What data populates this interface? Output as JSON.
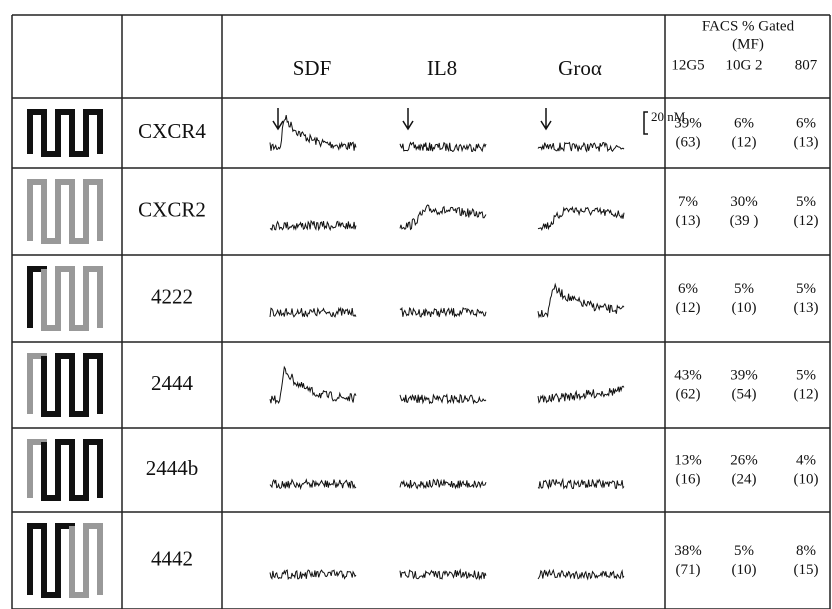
{
  "header": {
    "traces": [
      "SDF",
      "IL8",
      "Groα"
    ],
    "facs_title": "FACS % Gated",
    "facs_sub": "(MF)",
    "antibodies": [
      "12G5",
      "10G 2",
      "807"
    ],
    "scale": "20 nM"
  },
  "rows": [
    {
      "name": "CXCR4",
      "facs": [
        [
          "39%",
          "(63)"
        ],
        [
          "6%",
          "(12)"
        ],
        [
          "6%",
          "(13)"
        ]
      ]
    },
    {
      "name": "CXCR2",
      "facs": [
        [
          "7%",
          "(13)"
        ],
        [
          "30%",
          "(39 )"
        ],
        [
          "5%",
          "(12)"
        ]
      ]
    },
    {
      "name": "4222",
      "facs": [
        [
          "6%",
          "(12)"
        ],
        [
          "5%",
          "(10)"
        ],
        [
          "5%",
          "(13)"
        ]
      ]
    },
    {
      "name": "2444",
      "facs": [
        [
          "43%",
          "(62)"
        ],
        [
          "39%",
          "(54)"
        ],
        [
          "5%",
          "(12)"
        ]
      ]
    },
    {
      "name": "2444b",
      "facs": [
        [
          "13%",
          "(16)"
        ],
        [
          "26%",
          "(24)"
        ],
        [
          "4%",
          "(10)"
        ]
      ]
    },
    {
      "name": "4442",
      "facs": [
        [
          "38%",
          "(71)"
        ],
        [
          "5%",
          "(10)"
        ],
        [
          "8%",
          "(15)"
        ]
      ]
    }
  ]
}
